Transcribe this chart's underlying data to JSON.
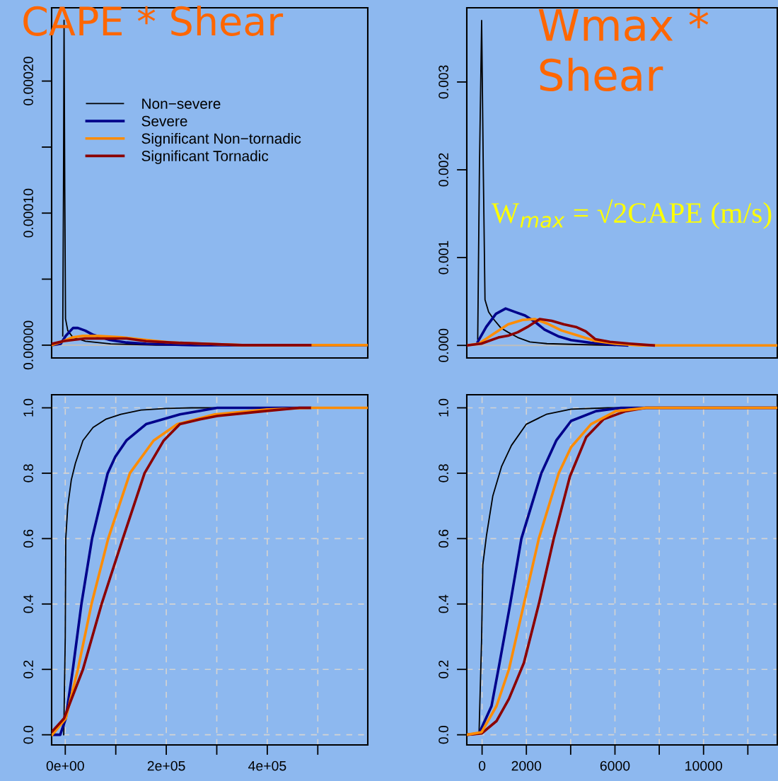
{
  "chart_data": [
    {
      "type": "line",
      "title": "CAPE * Shear",
      "xlim": [
        -27000,
        599000
      ],
      "ylim": [
        -9.7e-06,
        0.0002555
      ],
      "yticks": [
        {
          "value": 0,
          "label": "0.00000"
        },
        {
          "value": 5e-05,
          "label": null
        },
        {
          "value": 0.0001,
          "label": "0.00010"
        },
        {
          "value": 0.00015,
          "label": null
        },
        {
          "value": 0.0002,
          "label": "0.00020"
        }
      ],
      "tick_labels": "y",
      "legend": "top",
      "grid": false,
      "ref_lines": [
        {
          "axis": "y",
          "value": 0,
          "color": "#bebebe"
        }
      ],
      "series": [
        {
          "name": "Non−severe",
          "color": "#000000",
          "x": [
            -5000,
            -3500,
            -2400,
            -1000,
            500,
            5000,
            15000,
            40000,
            90000,
            180000,
            300000
          ],
          "values": [
            7e-06,
            0.00012,
            0.000246,
            0.00012,
            2e-05,
            1.1e-05,
            6e-06,
            3e-06,
            1e-06,
            0,
            0
          ]
        },
        {
          "name": "Severe",
          "color": "#00008b",
          "x": [
            -27000,
            -9000,
            1000,
            15400,
            25000,
            39500,
            54000,
            88000,
            121500,
            160000,
            256000,
            599000
          ],
          "values": [
            0,
            1e-06,
            7e-06,
            1.3e-05,
            1.3e-05,
            1.1e-05,
            8e-06,
            4e-06,
            2e-06,
            1e-06,
            0,
            0
          ]
        },
        {
          "name": "Significant Non−tornadic",
          "color": "#ff8c00",
          "x": [
            -27000,
            -4000,
            15400,
            34700,
            63700,
            112000,
            160000,
            208000,
            280000,
            350000,
            599000
          ],
          "values": [
            0,
            3e-06,
            6e-06,
            7e-06,
            7e-06,
            6e-06,
            4e-06,
            2e-06,
            1e-06,
            0,
            0
          ]
        },
        {
          "name": "Significant Tornadic",
          "color": "#8b0000",
          "x": [
            -27000,
            -4000,
            15400,
            39500,
            88000,
            121500,
            160000,
            208000,
            280000,
            350000,
            485000
          ],
          "values": [
            1e-06,
            3e-06,
            4e-06,
            5e-06,
            5e-06,
            5e-06,
            3e-06,
            2e-06,
            1e-06,
            0,
            0
          ]
        }
      ]
    },
    {
      "type": "line",
      "title": "Wmax * Shear",
      "annotations": [
        "W$_{max}$ = √2CAPE (m/s)"
      ],
      "xlim": [
        -690,
        13330
      ],
      "ylim": [
        -0.000143,
        0.003845
      ],
      "yticks": [
        {
          "value": 0,
          "label": "0.000"
        },
        {
          "value": 0.001,
          "label": "0.001"
        },
        {
          "value": 0.002,
          "label": "0.002"
        },
        {
          "value": 0.003,
          "label": "0.003"
        }
      ],
      "tick_labels": "y",
      "grid": false,
      "ref_lines": [
        {
          "axis": "y",
          "value": 0,
          "color": "#bebebe"
        }
      ],
      "series": [
        {
          "color": "#000000",
          "x": [
            -197,
            -120,
            -20,
            55,
            132,
            296,
            515,
            845,
            1173,
            1612,
            2160,
            2927,
            4350,
            6000
          ],
          "values": [
            7e-05,
            0.002,
            0.0037,
            0.002,
            0.00052,
            0.00038,
            0.0003,
            0.0002,
            0.00015,
            9e-05,
            4e-05,
            2e-05,
            1e-05,
            0
          ]
        },
        {
          "color": "#00008b",
          "x": [
            -197,
            187,
            625,
            1064,
            1500,
            1940,
            2380,
            2817,
            3475,
            4020,
            4900,
            5776,
            6550
          ],
          "values": [
            4e-05,
            0.00021,
            0.00036,
            0.00042,
            0.00038,
            0.00034,
            0.00027,
            0.00018,
            0.0001,
            6e-05,
            3e-05,
            1e-05,
            0
          ]
        },
        {
          "color": "#ff8c00",
          "x": [
            -690,
            -142,
            515,
            1173,
            1830,
            2380,
            2927,
            3585,
            4350,
            5120,
            6000,
            7100,
            13330
          ],
          "values": [
            0,
            2e-05,
            0.00013,
            0.00024,
            0.00029,
            0.0003,
            0.00025,
            0.00017,
            0.00011,
            5e-05,
            2e-05,
            0,
            0
          ]
        },
        {
          "color": "#8b0000",
          "x": [
            -690,
            -32,
            735,
            1173,
            1612,
            2050,
            2600,
            3146,
            3695,
            4240,
            4680,
            5120,
            5776,
            6650,
            7750
          ],
          "values": [
            0,
            2e-05,
            9e-05,
            0.00011,
            0.00015,
            0.00021,
            0.0003,
            0.00028,
            0.00024,
            0.00021,
            0.00016,
            7e-05,
            4e-05,
            2e-05,
            0
          ]
        }
      ]
    },
    {
      "type": "line",
      "xlim": [
        -27000,
        599000
      ],
      "ylim": [
        -0.031,
        1.04
      ],
      "xticks": [
        {
          "value": 0,
          "label": "0e+00"
        },
        {
          "value": 100000,
          "label": null
        },
        {
          "value": 200000,
          "label": "2e+05"
        },
        {
          "value": 300000,
          "label": null
        },
        {
          "value": 400000,
          "label": "4e+05"
        },
        {
          "value": 500000,
          "label": null
        }
      ],
      "yticks": [
        {
          "value": 0,
          "label": "0.0"
        },
        {
          "value": 0.2,
          "label": "0.2"
        },
        {
          "value": 0.4,
          "label": "0.4"
        },
        {
          "value": 0.6,
          "label": "0.6"
        },
        {
          "value": 0.8,
          "label": "0.8"
        },
        {
          "value": 1,
          "label": "1.0"
        }
      ],
      "grid": true,
      "series": [
        {
          "color": "#000000",
          "x": [
            -3000,
            0,
            1000,
            5000,
            12000,
            20000,
            35000,
            55000,
            80000,
            110000,
            150000,
            200000,
            250000,
            485000
          ],
          "values": [
            0,
            0.3,
            0.6,
            0.7,
            0.78,
            0.83,
            0.9,
            0.94,
            0.965,
            0.98,
            0.993,
            0.998,
            1,
            1
          ]
        },
        {
          "color": "#00008b",
          "x": [
            -26000,
            -10000,
            1000,
            15000,
            32000,
            53000,
            84000,
            99000,
            121000,
            160000,
            227000,
            301000,
            485000
          ],
          "values": [
            0,
            0,
            0.05,
            0.2,
            0.4,
            0.6,
            0.8,
            0.85,
            0.9,
            0.95,
            0.98,
            1,
            1
          ]
        },
        {
          "color": "#ff8c00",
          "x": [
            -26000,
            1000,
            25000,
            52000,
            85000,
            128000,
            175000,
            222000,
            296000,
            400000,
            486000,
            599000
          ],
          "values": [
            0,
            0.05,
            0.2,
            0.4,
            0.6,
            0.8,
            0.9,
            0.95,
            0.98,
            0.995,
            1,
            1
          ]
        },
        {
          "color": "#8b0000",
          "x": [
            -26000,
            -2500,
            35000,
            72000,
            114000,
            157000,
            195000,
            227000,
            267000,
            301000,
            395000,
            464000,
            484000
          ],
          "values": [
            0.01,
            0.05,
            0.2,
            0.4,
            0.6,
            0.8,
            0.9,
            0.95,
            0.965,
            0.975,
            0.99,
            1,
            1
          ]
        }
      ]
    },
    {
      "type": "line",
      "xlim": [
        -690,
        13330
      ],
      "ylim": [
        -0.031,
        1.04
      ],
      "xticks": [
        {
          "value": 0,
          "label": "0"
        },
        {
          "value": 2000,
          "label": "2000"
        },
        {
          "value": 4000,
          "label": null
        },
        {
          "value": 6000,
          "label": "6000"
        },
        {
          "value": 8000,
          "label": null
        },
        {
          "value": 10000,
          "label": "10000"
        },
        {
          "value": 12000,
          "label": null
        }
      ],
      "yticks": [
        {
          "value": 0,
          "label": "0.0"
        },
        {
          "value": 0.2,
          "label": "0.2"
        },
        {
          "value": 0.4,
          "label": "0.4"
        },
        {
          "value": 0.6,
          "label": "0.6"
        },
        {
          "value": 0.8,
          "label": "0.8"
        },
        {
          "value": 1,
          "label": "1.0"
        }
      ],
      "grid": true,
      "series": [
        {
          "color": "#000000",
          "x": [
            -135,
            -22,
            34,
            200,
            483,
            876,
            1326,
            2000,
            2900,
            4020,
            5700,
            13330
          ],
          "values": [
            0.01,
            0.29,
            0.52,
            0.61,
            0.73,
            0.82,
            0.885,
            0.95,
            0.98,
            0.996,
            1,
            1
          ]
        },
        {
          "color": "#00008b",
          "x": [
            -685,
            -135,
            427,
            764,
            1270,
            1775,
            2225,
            2675,
            3350,
            4020,
            5150,
            6270,
            13330
          ],
          "values": [
            0,
            0.004,
            0.088,
            0.21,
            0.4,
            0.6,
            0.7,
            0.8,
            0.9,
            0.96,
            0.99,
            1,
            1
          ]
        },
        {
          "color": "#8b0000",
          "x": [
            -685,
            -22,
            652,
            1213,
            1888,
            2562,
            3236,
            3966,
            4700,
            5483,
            6494,
            7393,
            13330
          ],
          "values": [
            0,
            0.004,
            0.042,
            0.11,
            0.22,
            0.4,
            0.6,
            0.79,
            0.91,
            0.965,
            0.99,
            1,
            1
          ]
        },
        {
          "color": "#ff8c00",
          "x": [
            -685,
            -22,
            652,
            1213,
            1888,
            2562,
            3460,
            4020,
            4920,
            6045,
            7390,
            13330
          ],
          "values": [
            0,
            0.008,
            0.088,
            0.2,
            0.4,
            0.6,
            0.8,
            0.88,
            0.95,
            0.99,
            1,
            1
          ]
        }
      ]
    }
  ]
}
